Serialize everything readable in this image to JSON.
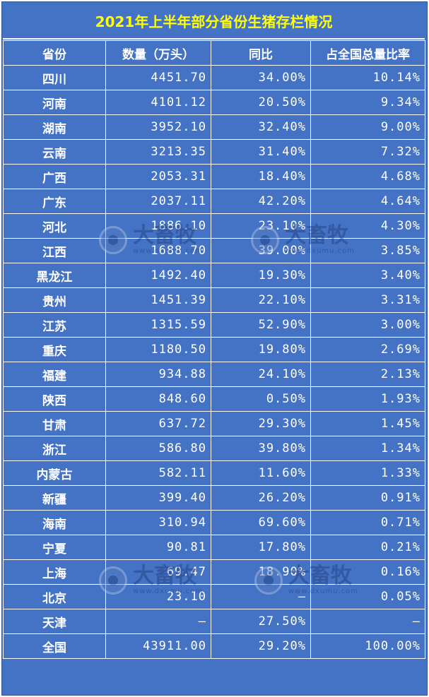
{
  "title": "2021年上半年部分省份生猪存栏情况",
  "headers": [
    "省份",
    "数量（万头）",
    "同比",
    "占全国总量比率"
  ],
  "rows": [
    [
      "四川",
      "4451.70",
      "34.00%",
      "10.14%"
    ],
    [
      "河南",
      "4101.12",
      "20.50%",
      "9.34%"
    ],
    [
      "湖南",
      "3952.10",
      "32.40%",
      "9.00%"
    ],
    [
      "云南",
      "3213.35",
      "31.40%",
      "7.32%"
    ],
    [
      "广西",
      "2053.31",
      "18.40%",
      "4.68%"
    ],
    [
      "广东",
      "2037.11",
      "42.20%",
      "4.64%"
    ],
    [
      "河北",
      "1886.10",
      "23.10%",
      "4.30%"
    ],
    [
      "江西",
      "1688.70",
      "39.00%",
      "3.85%"
    ],
    [
      "黑龙江",
      "1492.40",
      "19.30%",
      "3.40%"
    ],
    [
      "贵州",
      "1451.39",
      "22.10%",
      "3.31%"
    ],
    [
      "江苏",
      "1315.59",
      "52.90%",
      "3.00%"
    ],
    [
      "重庆",
      "1180.50",
      "19.80%",
      "2.69%"
    ],
    [
      "福建",
      "934.88",
      "24.10%",
      "2.13%"
    ],
    [
      "陕西",
      "848.60",
      "0.50%",
      "1.93%"
    ],
    [
      "甘肃",
      "637.72",
      "29.30%",
      "1.45%"
    ],
    [
      "浙江",
      "586.80",
      "39.80%",
      "1.34%"
    ],
    [
      "内蒙古",
      "582.11",
      "11.60%",
      "1.33%"
    ],
    [
      "新疆",
      "399.40",
      "26.20%",
      "0.91%"
    ],
    [
      "海南",
      "310.94",
      "69.60%",
      "0.71%"
    ],
    [
      "宁夏",
      "90.81",
      "17.80%",
      "0.21%"
    ],
    [
      "上海",
      "69.47",
      "18.90%",
      "0.16%"
    ],
    [
      "北京",
      "23.10",
      "–",
      "0.05%"
    ],
    [
      "天津",
      "–",
      "27.50%",
      "–"
    ],
    [
      "全国",
      "43911.00",
      "29.20%",
      "100.00%"
    ]
  ],
  "watermark": {
    "brand": "大畜牧",
    "site": "www.dxumu.com"
  },
  "colors": {
    "background": "#4472c4",
    "title_text": "#ffff00",
    "text": "#ffffff",
    "watermark": "#1e3d7a"
  }
}
